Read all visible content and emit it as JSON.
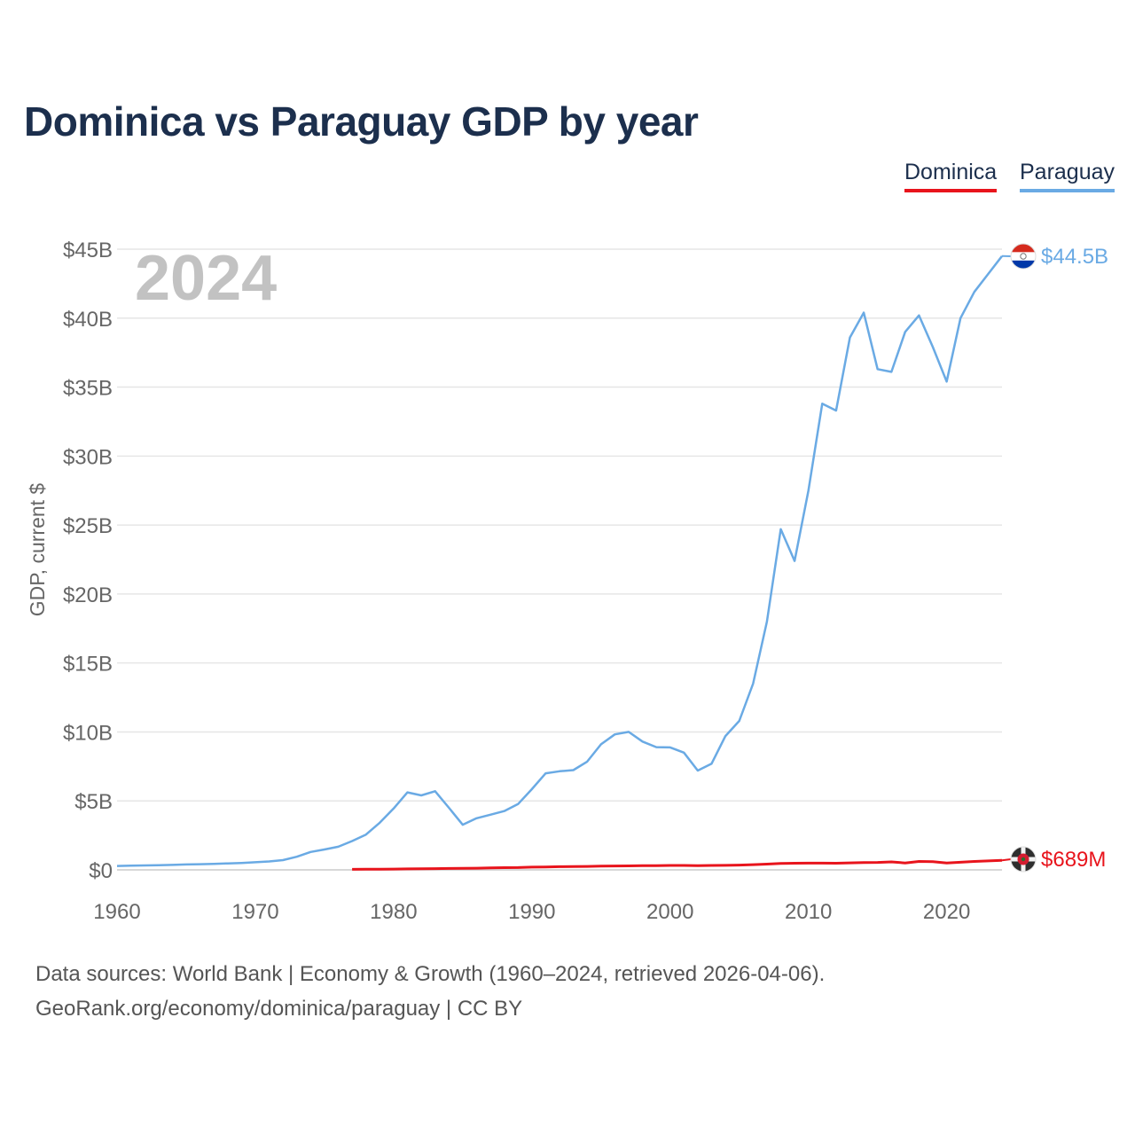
{
  "chart_data": {
    "type": "line",
    "title": "Dominica vs Paraguay GDP by year",
    "year_label": "2024",
    "ylabel": "GDP, current $",
    "xlabel": "",
    "xlim": [
      1960,
      2024
    ],
    "ylim": [
      0,
      45
    ],
    "y_unit": "billions USD",
    "x_ticks": [
      1960,
      1970,
      1980,
      1990,
      2000,
      2010,
      2020
    ],
    "y_ticks": [
      {
        "value": 0,
        "label": "$0"
      },
      {
        "value": 5,
        "label": "$5B"
      },
      {
        "value": 10,
        "label": "$10B"
      },
      {
        "value": 15,
        "label": "$15B"
      },
      {
        "value": 20,
        "label": "$20B"
      },
      {
        "value": 25,
        "label": "$25B"
      },
      {
        "value": 30,
        "label": "$30B"
      },
      {
        "value": 35,
        "label": "$35B"
      },
      {
        "value": 40,
        "label": "$40B"
      },
      {
        "value": 45,
        "label": "$45B"
      }
    ],
    "grid": true,
    "legend_position": "top-right",
    "series": [
      {
        "name": "Dominica",
        "color": "#e8141c",
        "end_label": "$689M",
        "flag_icon": "dominica-flag-icon",
        "x": [
          1977,
          1978,
          1979,
          1980,
          1981,
          1982,
          1983,
          1984,
          1985,
          1986,
          1987,
          1988,
          1989,
          1990,
          1991,
          1992,
          1993,
          1994,
          1995,
          1996,
          1997,
          1998,
          1999,
          2000,
          2001,
          2002,
          2003,
          2004,
          2005,
          2006,
          2007,
          2008,
          2009,
          2010,
          2011,
          2012,
          2013,
          2014,
          2015,
          2016,
          2017,
          2018,
          2019,
          2020,
          2021,
          2022,
          2023,
          2024
        ],
        "values": [
          0.04,
          0.05,
          0.05,
          0.06,
          0.07,
          0.08,
          0.09,
          0.1,
          0.11,
          0.12,
          0.14,
          0.16,
          0.17,
          0.2,
          0.21,
          0.23,
          0.24,
          0.25,
          0.27,
          0.28,
          0.29,
          0.3,
          0.31,
          0.32,
          0.32,
          0.31,
          0.32,
          0.33,
          0.35,
          0.38,
          0.42,
          0.46,
          0.48,
          0.49,
          0.49,
          0.48,
          0.51,
          0.53,
          0.54,
          0.58,
          0.5,
          0.61,
          0.6,
          0.5,
          0.55,
          0.61,
          0.65,
          0.689
        ]
      },
      {
        "name": "Paraguay",
        "color": "#6aaae4",
        "end_label": "$44.5B",
        "flag_icon": "paraguay-flag-icon",
        "x": [
          1960,
          1961,
          1962,
          1963,
          1964,
          1965,
          1966,
          1967,
          1968,
          1969,
          1970,
          1971,
          1972,
          1973,
          1974,
          1975,
          1976,
          1977,
          1978,
          1979,
          1980,
          1981,
          1982,
          1983,
          1984,
          1985,
          1986,
          1987,
          1988,
          1989,
          1990,
          1991,
          1992,
          1993,
          1994,
          1995,
          1996,
          1997,
          1998,
          1999,
          2000,
          2001,
          2002,
          2003,
          2004,
          2005,
          2006,
          2007,
          2008,
          2009,
          2010,
          2011,
          2012,
          2013,
          2014,
          2015,
          2016,
          2017,
          2018,
          2019,
          2020,
          2021,
          2022,
          2023,
          2024
        ],
        "values": [
          0.28,
          0.3,
          0.32,
          0.34,
          0.36,
          0.39,
          0.41,
          0.44,
          0.47,
          0.5,
          0.55,
          0.61,
          0.71,
          0.95,
          1.3,
          1.48,
          1.68,
          2.09,
          2.56,
          3.42,
          4.45,
          5.62,
          5.4,
          5.7,
          4.5,
          3.27,
          3.74,
          4.0,
          4.26,
          4.77,
          5.85,
          7.0,
          7.15,
          7.23,
          7.85,
          9.1,
          9.82,
          10.0,
          9.3,
          8.9,
          8.88,
          8.5,
          7.2,
          7.7,
          9.7,
          10.8,
          13.5,
          18.0,
          24.7,
          22.4,
          27.5,
          33.8,
          33.3,
          38.6,
          40.4,
          36.3,
          36.1,
          39.0,
          40.2,
          37.9,
          35.4,
          40.0,
          41.9,
          43.2,
          44.5
        ]
      }
    ]
  },
  "footer": {
    "line1": "Data sources: World Bank | Economy & Growth (1960–2024, retrieved 2026-04-06).",
    "line2": "GeoRank.org/economy/dominica/paraguay | CC BY"
  }
}
